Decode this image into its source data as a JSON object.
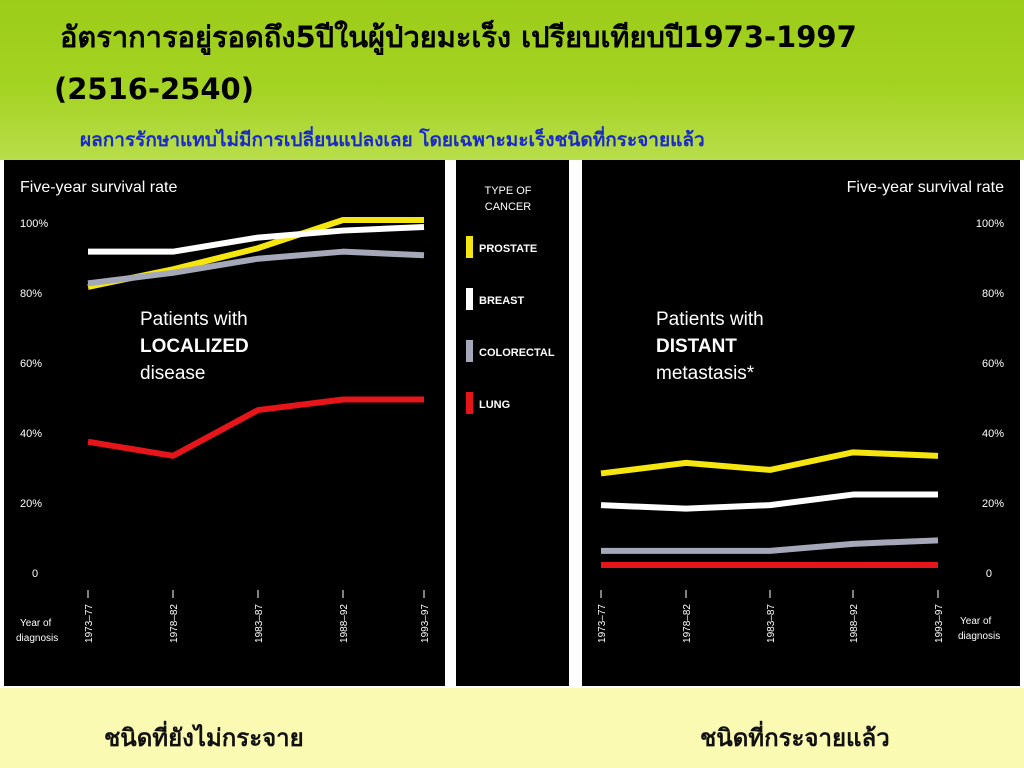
{
  "slide": {
    "title_line1": "อัตราการอยู่รอดถึง5ปีในผู้ป่วยมะเร็ง เปรียบเทียบปี1973-1997",
    "title_line2": "(2516-2540)",
    "subtitle": "ผลการรักษาแทบไม่มีการเปลี่ยนแปลงเลย โดยเฉพาะมะเร็งชนิดที่กระจายแล้ว",
    "caption_left": "ชนิดที่ยังไม่กระจาย",
    "caption_right": "ชนิดที่กระจายแล้ว"
  },
  "colors": {
    "background_top": "#a5d323",
    "background_bottom": "#fbfab2",
    "panel": "#000000",
    "subtitle": "#1a2ac8"
  },
  "legend": {
    "title_line1": "TYPE OF",
    "title_line2": "CANCER",
    "items": [
      {
        "label": "PROSTATE",
        "color": "#f5e60f"
      },
      {
        "label": "BREAST",
        "color": "#ffffff"
      },
      {
        "label": "COLORECTAL",
        "color": "#a5a8b8"
      },
      {
        "label": "LUNG",
        "color": "#e5151a"
      }
    ]
  },
  "chart_data": [
    {
      "type": "line",
      "title": "Five-year survival rate",
      "panel_label_line1": "Patients with",
      "panel_label_line2": "LOCALIZED",
      "panel_label_line3": "disease",
      "xlabel_line1": "Year of",
      "xlabel_line2": "diagnosis",
      "categories": [
        "1973–77",
        "1978–82",
        "1983–87",
        "1988–92",
        "1993–97"
      ],
      "yticks": [
        "100%",
        "80%",
        "60%",
        "40%",
        "20%",
        "0"
      ],
      "ylim": [
        0,
        100
      ],
      "y_axis_side": "left",
      "series": [
        {
          "name": "PROSTATE",
          "color": "#f5e60f",
          "values": [
            81,
            86,
            92,
            100,
            100
          ]
        },
        {
          "name": "BREAST",
          "color": "#ffffff",
          "values": [
            91,
            91,
            95,
            97,
            98
          ]
        },
        {
          "name": "COLORECTAL",
          "color": "#a5a8b8",
          "values": [
            82,
            85,
            89,
            91,
            90
          ]
        },
        {
          "name": "LUNG",
          "color": "#e5151a",
          "values": [
            37,
            33,
            46,
            49,
            49
          ]
        }
      ]
    },
    {
      "type": "line",
      "title": "Five-year survival rate",
      "panel_label_line1": "Patients with",
      "panel_label_line2": "DISTANT",
      "panel_label_line3": "metastasis*",
      "xlabel_line1": "Year of",
      "xlabel_line2": "diagnosis",
      "categories": [
        "1973–77",
        "1978–82",
        "1983–87",
        "1988–92",
        "1993–97"
      ],
      "yticks": [
        "100%",
        "80%",
        "60%",
        "40%",
        "20%",
        "0"
      ],
      "ylim": [
        0,
        100
      ],
      "y_axis_side": "right",
      "series": [
        {
          "name": "PROSTATE",
          "color": "#f5e60f",
          "values": [
            28,
            31,
            29,
            34,
            33
          ]
        },
        {
          "name": "BREAST",
          "color": "#ffffff",
          "values": [
            19,
            18,
            19,
            22,
            22
          ]
        },
        {
          "name": "COLORECTAL",
          "color": "#a5a8b8",
          "values": [
            6,
            6,
            6,
            8,
            9
          ]
        },
        {
          "name": "LUNG",
          "color": "#e5151a",
          "values": [
            2,
            2,
            2,
            2,
            2
          ]
        }
      ]
    }
  ]
}
